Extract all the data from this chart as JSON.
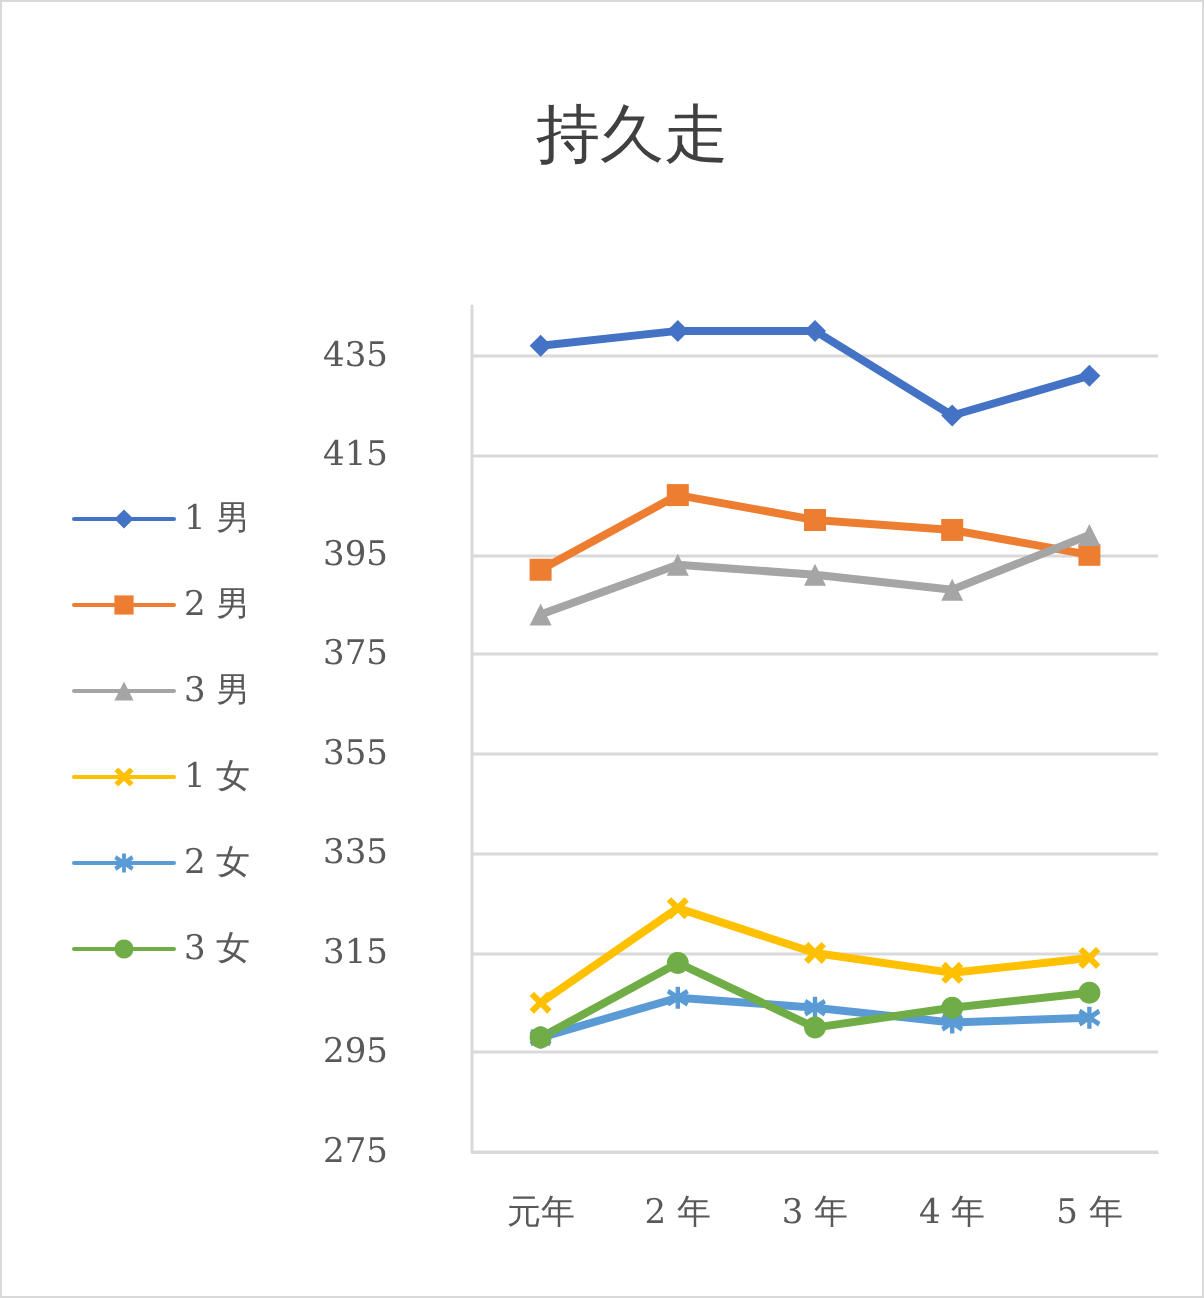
{
  "chart_data": {
    "type": "line",
    "title": "持久走",
    "categories": [
      "元年",
      "2 年",
      "3 年",
      "4 年",
      "5 年"
    ],
    "series": [
      {
        "name": "1 男",
        "color": "#4472c4",
        "marker": "diamond",
        "values": [
          437,
          440,
          440,
          423,
          431
        ]
      },
      {
        "name": "2 男",
        "color": "#ed7d31",
        "marker": "square",
        "values": [
          392,
          407,
          402,
          400,
          395
        ]
      },
      {
        "name": "3 男",
        "color": "#a5a5a5",
        "marker": "triangle",
        "values": [
          383,
          393,
          391,
          388,
          399
        ]
      },
      {
        "name": "1 女",
        "color": "#ffc000",
        "marker": "cross",
        "values": [
          305,
          324,
          315,
          311,
          314
        ]
      },
      {
        "name": "2 女",
        "color": "#5b9bd5",
        "marker": "star",
        "values": [
          298,
          306,
          304,
          301,
          302
        ]
      },
      {
        "name": "3 女",
        "color": "#70ad47",
        "marker": "circle",
        "values": [
          298,
          313,
          300,
          304,
          307
        ]
      }
    ],
    "ylim": [
      275,
      445
    ],
    "yticks": [
      275,
      295,
      315,
      335,
      355,
      375,
      395,
      415,
      435
    ],
    "grid": "y",
    "legend": "left",
    "line_style": "solid"
  }
}
